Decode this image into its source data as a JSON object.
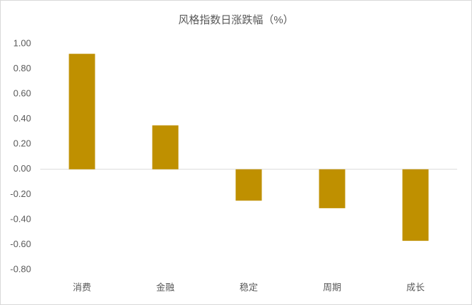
{
  "chart_data": {
    "type": "bar",
    "title": "风格指数日涨跌幅（%）",
    "categories": [
      "消费",
      "金融",
      "稳定",
      "周期",
      "成长"
    ],
    "values": [
      0.92,
      0.35,
      -0.25,
      -0.31,
      -0.57
    ],
    "color": "#bf9000",
    "ylim": [
      -0.8,
      1.0
    ],
    "yticks": [
      {
        "value": -0.8,
        "label": "-0.80"
      },
      {
        "value": -0.6,
        "label": "-0.60"
      },
      {
        "value": -0.4,
        "label": "-0.40"
      },
      {
        "value": -0.2,
        "label": "-0.20"
      },
      {
        "value": 0,
        "label": "0.00"
      },
      {
        "value": 0.2,
        "label": "0.20"
      },
      {
        "value": 0.4,
        "label": "0.40"
      },
      {
        "value": 0.6,
        "label": "0.60"
      },
      {
        "value": 0.8,
        "label": "0.80"
      },
      {
        "value": 1.0,
        "label": "1.00"
      }
    ],
    "grid": false
  }
}
